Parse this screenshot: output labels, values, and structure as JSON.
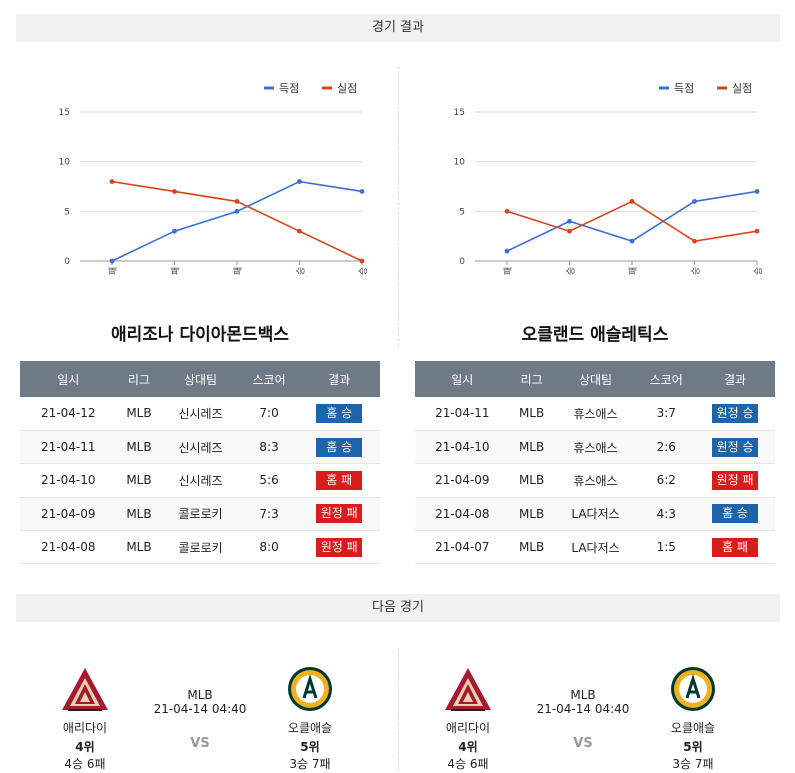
{
  "sections": {
    "results_title": "경기 결과",
    "next_title": "다음 경기"
  },
  "colors": {
    "scored": "#3a6fd4",
    "allowed": "#d9441d",
    "win_badge": "#1f63a8",
    "lose_badge": "#d91c1c"
  },
  "legend": {
    "scored": "득점",
    "allowed": "실점"
  },
  "table_headers": [
    "일시",
    "리그",
    "상대팀",
    "스코어",
    "결과"
  ],
  "left": {
    "team": "애리조나 다이아몬드백스",
    "chart_data": {
      "type": "line",
      "categories": [
        "패",
        "패",
        "패",
        "승",
        "승"
      ],
      "ylim": [
        0,
        15
      ],
      "yticks": [
        0,
        5,
        10,
        15
      ],
      "series": [
        {
          "name": "득점",
          "color": "#3a6fd4",
          "values": [
            0,
            3,
            5,
            8,
            7
          ]
        },
        {
          "name": "실점",
          "color": "#d9441d",
          "values": [
            8,
            7,
            6,
            3,
            0
          ]
        }
      ],
      "legend_position": "top-right",
      "grid": true
    },
    "games": [
      {
        "date": "21-04-12",
        "league": "MLB",
        "opponent": "신시레즈",
        "score": "7:0",
        "result": "홈 승",
        "win": true
      },
      {
        "date": "21-04-11",
        "league": "MLB",
        "opponent": "신시레즈",
        "score": "8:3",
        "result": "홈 승",
        "win": true
      },
      {
        "date": "21-04-10",
        "league": "MLB",
        "opponent": "신시레즈",
        "score": "5:6",
        "result": "홈 패",
        "win": false
      },
      {
        "date": "21-04-09",
        "league": "MLB",
        "opponent": "콜로로키",
        "score": "7:3",
        "result": "원정 패",
        "win": false
      },
      {
        "date": "21-04-08",
        "league": "MLB",
        "opponent": "콜로로키",
        "score": "8:0",
        "result": "원정 패",
        "win": false
      }
    ]
  },
  "right": {
    "team": "오클랜드 애슬레틱스",
    "chart_data": {
      "type": "line",
      "categories": [
        "패",
        "승",
        "패",
        "승",
        "승"
      ],
      "ylim": [
        0,
        15
      ],
      "yticks": [
        0,
        5,
        10,
        15
      ],
      "series": [
        {
          "name": "득점",
          "color": "#3a6fd4",
          "values": [
            1,
            4,
            2,
            6,
            7
          ]
        },
        {
          "name": "실점",
          "color": "#d9441d",
          "values": [
            5,
            3,
            6,
            2,
            3
          ]
        }
      ],
      "legend_position": "top-right",
      "grid": true
    },
    "games": [
      {
        "date": "21-04-11",
        "league": "MLB",
        "opponent": "휴스애스",
        "score": "3:7",
        "result": "원정 승",
        "win": true
      },
      {
        "date": "21-04-10",
        "league": "MLB",
        "opponent": "휴스애스",
        "score": "2:6",
        "result": "원정 승",
        "win": true
      },
      {
        "date": "21-04-09",
        "league": "MLB",
        "opponent": "휴스애스",
        "score": "6:2",
        "result": "원정 패",
        "win": false
      },
      {
        "date": "21-04-08",
        "league": "MLB",
        "opponent": "LA다저스",
        "score": "4:3",
        "result": "홈 승",
        "win": true
      },
      {
        "date": "21-04-07",
        "league": "MLB",
        "opponent": "LA다저스",
        "score": "1:5",
        "result": "홈 패",
        "win": false
      }
    ]
  },
  "matches": [
    {
      "league": "MLB",
      "datetime": "21-04-14 04:40",
      "vs": "VS",
      "home": {
        "name": "애리다이",
        "rank": "4위",
        "record": "4승 6패",
        "logo": "diamondbacks-logo"
      },
      "away": {
        "name": "오클애슬",
        "rank": "5위",
        "record": "3승 7패",
        "logo": "athletics-logo"
      }
    },
    {
      "league": "MLB",
      "datetime": "21-04-14 04:40",
      "vs": "VS",
      "home": {
        "name": "애리다이",
        "rank": "4위",
        "record": "4승 6패",
        "logo": "diamondbacks-logo"
      },
      "away": {
        "name": "오클애슬",
        "rank": "5위",
        "record": "3승 7패",
        "logo": "athletics-logo"
      }
    }
  ]
}
